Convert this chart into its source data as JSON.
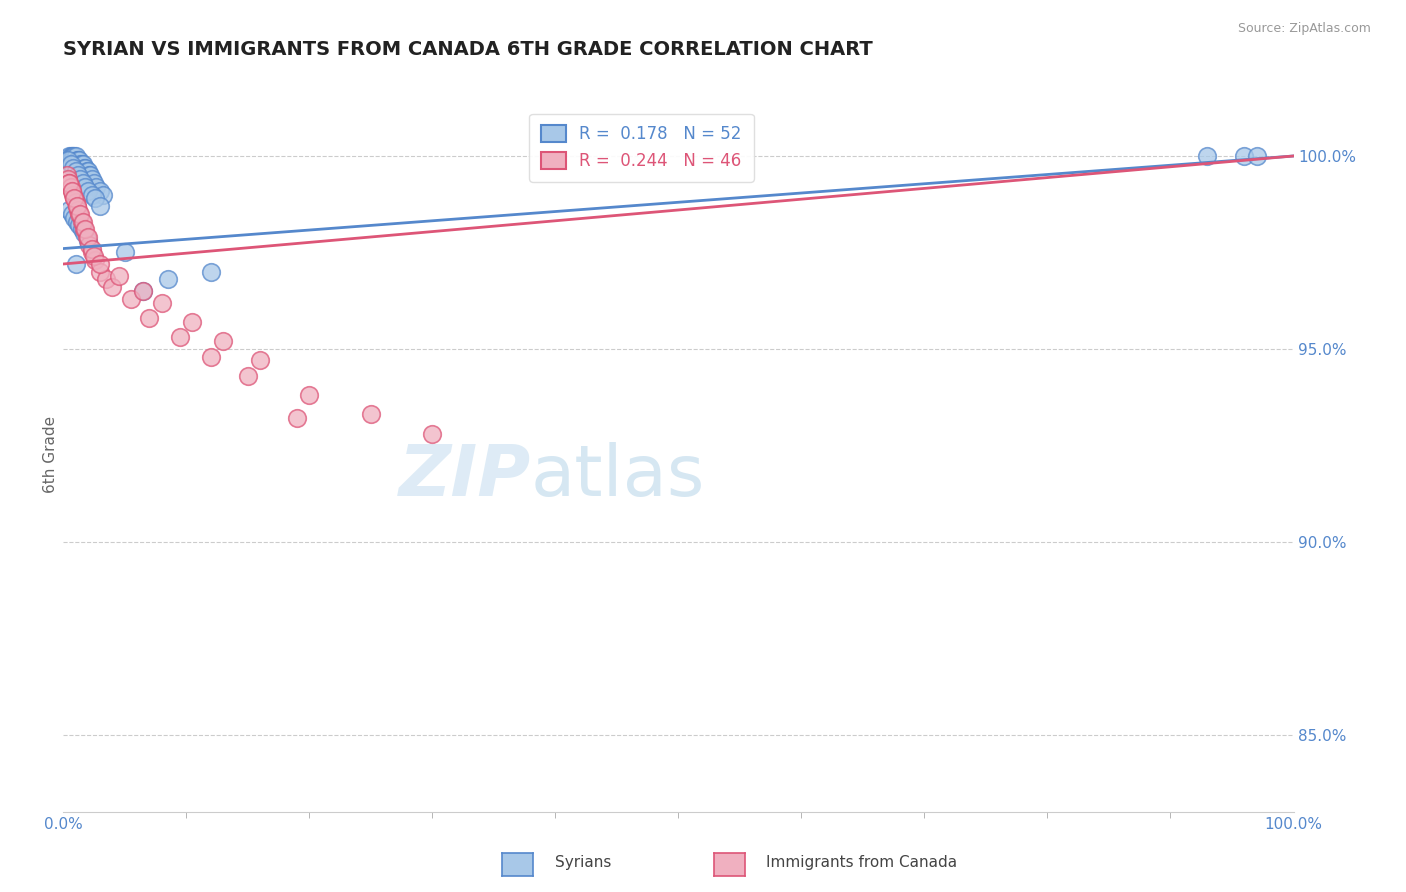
{
  "title": "SYRIAN VS IMMIGRANTS FROM CANADA 6TH GRADE CORRELATION CHART",
  "source": "Source: ZipAtlas.com",
  "ylabel_label": "6th Grade",
  "right_yticks": [
    85.0,
    90.0,
    95.0,
    100.0
  ],
  "xlim": [
    0.0,
    100.0
  ],
  "ylim": [
    83.0,
    101.5
  ],
  "blue_R": 0.178,
  "blue_N": 52,
  "pink_R": 0.244,
  "pink_N": 46,
  "blue_color": "#a8c8e8",
  "pink_color": "#f0b0c0",
  "blue_line_color": "#5588cc",
  "pink_line_color": "#dd5577",
  "legend_label_blue": "Syrians",
  "legend_label_pink": "Immigrants from Canada",
  "blue_trendline_x0": 0.0,
  "blue_trendline_y0": 97.6,
  "blue_trendline_x1": 100.0,
  "blue_trendline_y1": 100.0,
  "pink_trendline_x0": 0.0,
  "pink_trendline_y0": 97.2,
  "pink_trendline_x1": 100.0,
  "pink_trendline_y1": 100.0,
  "blue_scatter_x": [
    0.3,
    0.5,
    0.6,
    0.7,
    0.8,
    0.9,
    1.0,
    1.1,
    1.2,
    1.3,
    1.4,
    1.5,
    1.6,
    1.7,
    1.8,
    1.9,
    2.0,
    2.1,
    2.2,
    2.3,
    2.5,
    2.7,
    3.0,
    3.2,
    0.4,
    0.6,
    0.8,
    1.0,
    1.2,
    1.4,
    1.6,
    1.8,
    2.0,
    2.3,
    2.6,
    3.0,
    0.5,
    0.7,
    0.9,
    1.1,
    1.3,
    1.5,
    1.7,
    2.0,
    5.0,
    6.5,
    8.5,
    12.0,
    1.0,
    93.0,
    96.0,
    97.0
  ],
  "blue_scatter_y": [
    99.9,
    100.0,
    100.0,
    100.0,
    100.0,
    100.0,
    100.0,
    99.9,
    99.9,
    99.9,
    99.8,
    99.8,
    99.8,
    99.7,
    99.7,
    99.6,
    99.6,
    99.5,
    99.5,
    99.4,
    99.3,
    99.2,
    99.1,
    99.0,
    99.9,
    99.8,
    99.7,
    99.6,
    99.5,
    99.4,
    99.3,
    99.2,
    99.1,
    99.0,
    98.9,
    98.7,
    98.6,
    98.5,
    98.4,
    98.3,
    98.2,
    98.1,
    98.0,
    97.8,
    97.5,
    96.5,
    96.8,
    97.0,
    97.2,
    100.0,
    100.0,
    100.0
  ],
  "pink_scatter_x": [
    0.3,
    0.4,
    0.5,
    0.6,
    0.7,
    0.8,
    0.9,
    1.0,
    1.1,
    1.2,
    1.3,
    1.5,
    1.7,
    1.9,
    2.1,
    2.3,
    2.6,
    3.0,
    3.5,
    4.0,
    0.5,
    0.7,
    0.9,
    1.1,
    1.4,
    1.6,
    1.8,
    2.0,
    2.3,
    5.5,
    7.0,
    9.5,
    12.0,
    15.0,
    20.0,
    25.0,
    30.0,
    2.5,
    3.0,
    4.5,
    6.5,
    8.0,
    10.5,
    13.0,
    16.0,
    19.0
  ],
  "pink_scatter_y": [
    99.5,
    99.4,
    99.3,
    99.2,
    99.1,
    99.0,
    98.9,
    98.8,
    98.7,
    98.6,
    98.5,
    98.3,
    98.1,
    97.9,
    97.7,
    97.5,
    97.3,
    97.0,
    96.8,
    96.6,
    99.3,
    99.1,
    98.9,
    98.7,
    98.5,
    98.3,
    98.1,
    97.9,
    97.6,
    96.3,
    95.8,
    95.3,
    94.8,
    94.3,
    93.8,
    93.3,
    92.8,
    97.4,
    97.2,
    96.9,
    96.5,
    96.2,
    95.7,
    95.2,
    94.7,
    93.2
  ],
  "watermark_zip": "ZIP",
  "watermark_atlas": "atlas",
  "background_color": "#ffffff",
  "grid_color": "#cccccc",
  "title_fontsize": 14,
  "axis_tick_color": "#5588cc",
  "axis_tick_fontsize": 11
}
